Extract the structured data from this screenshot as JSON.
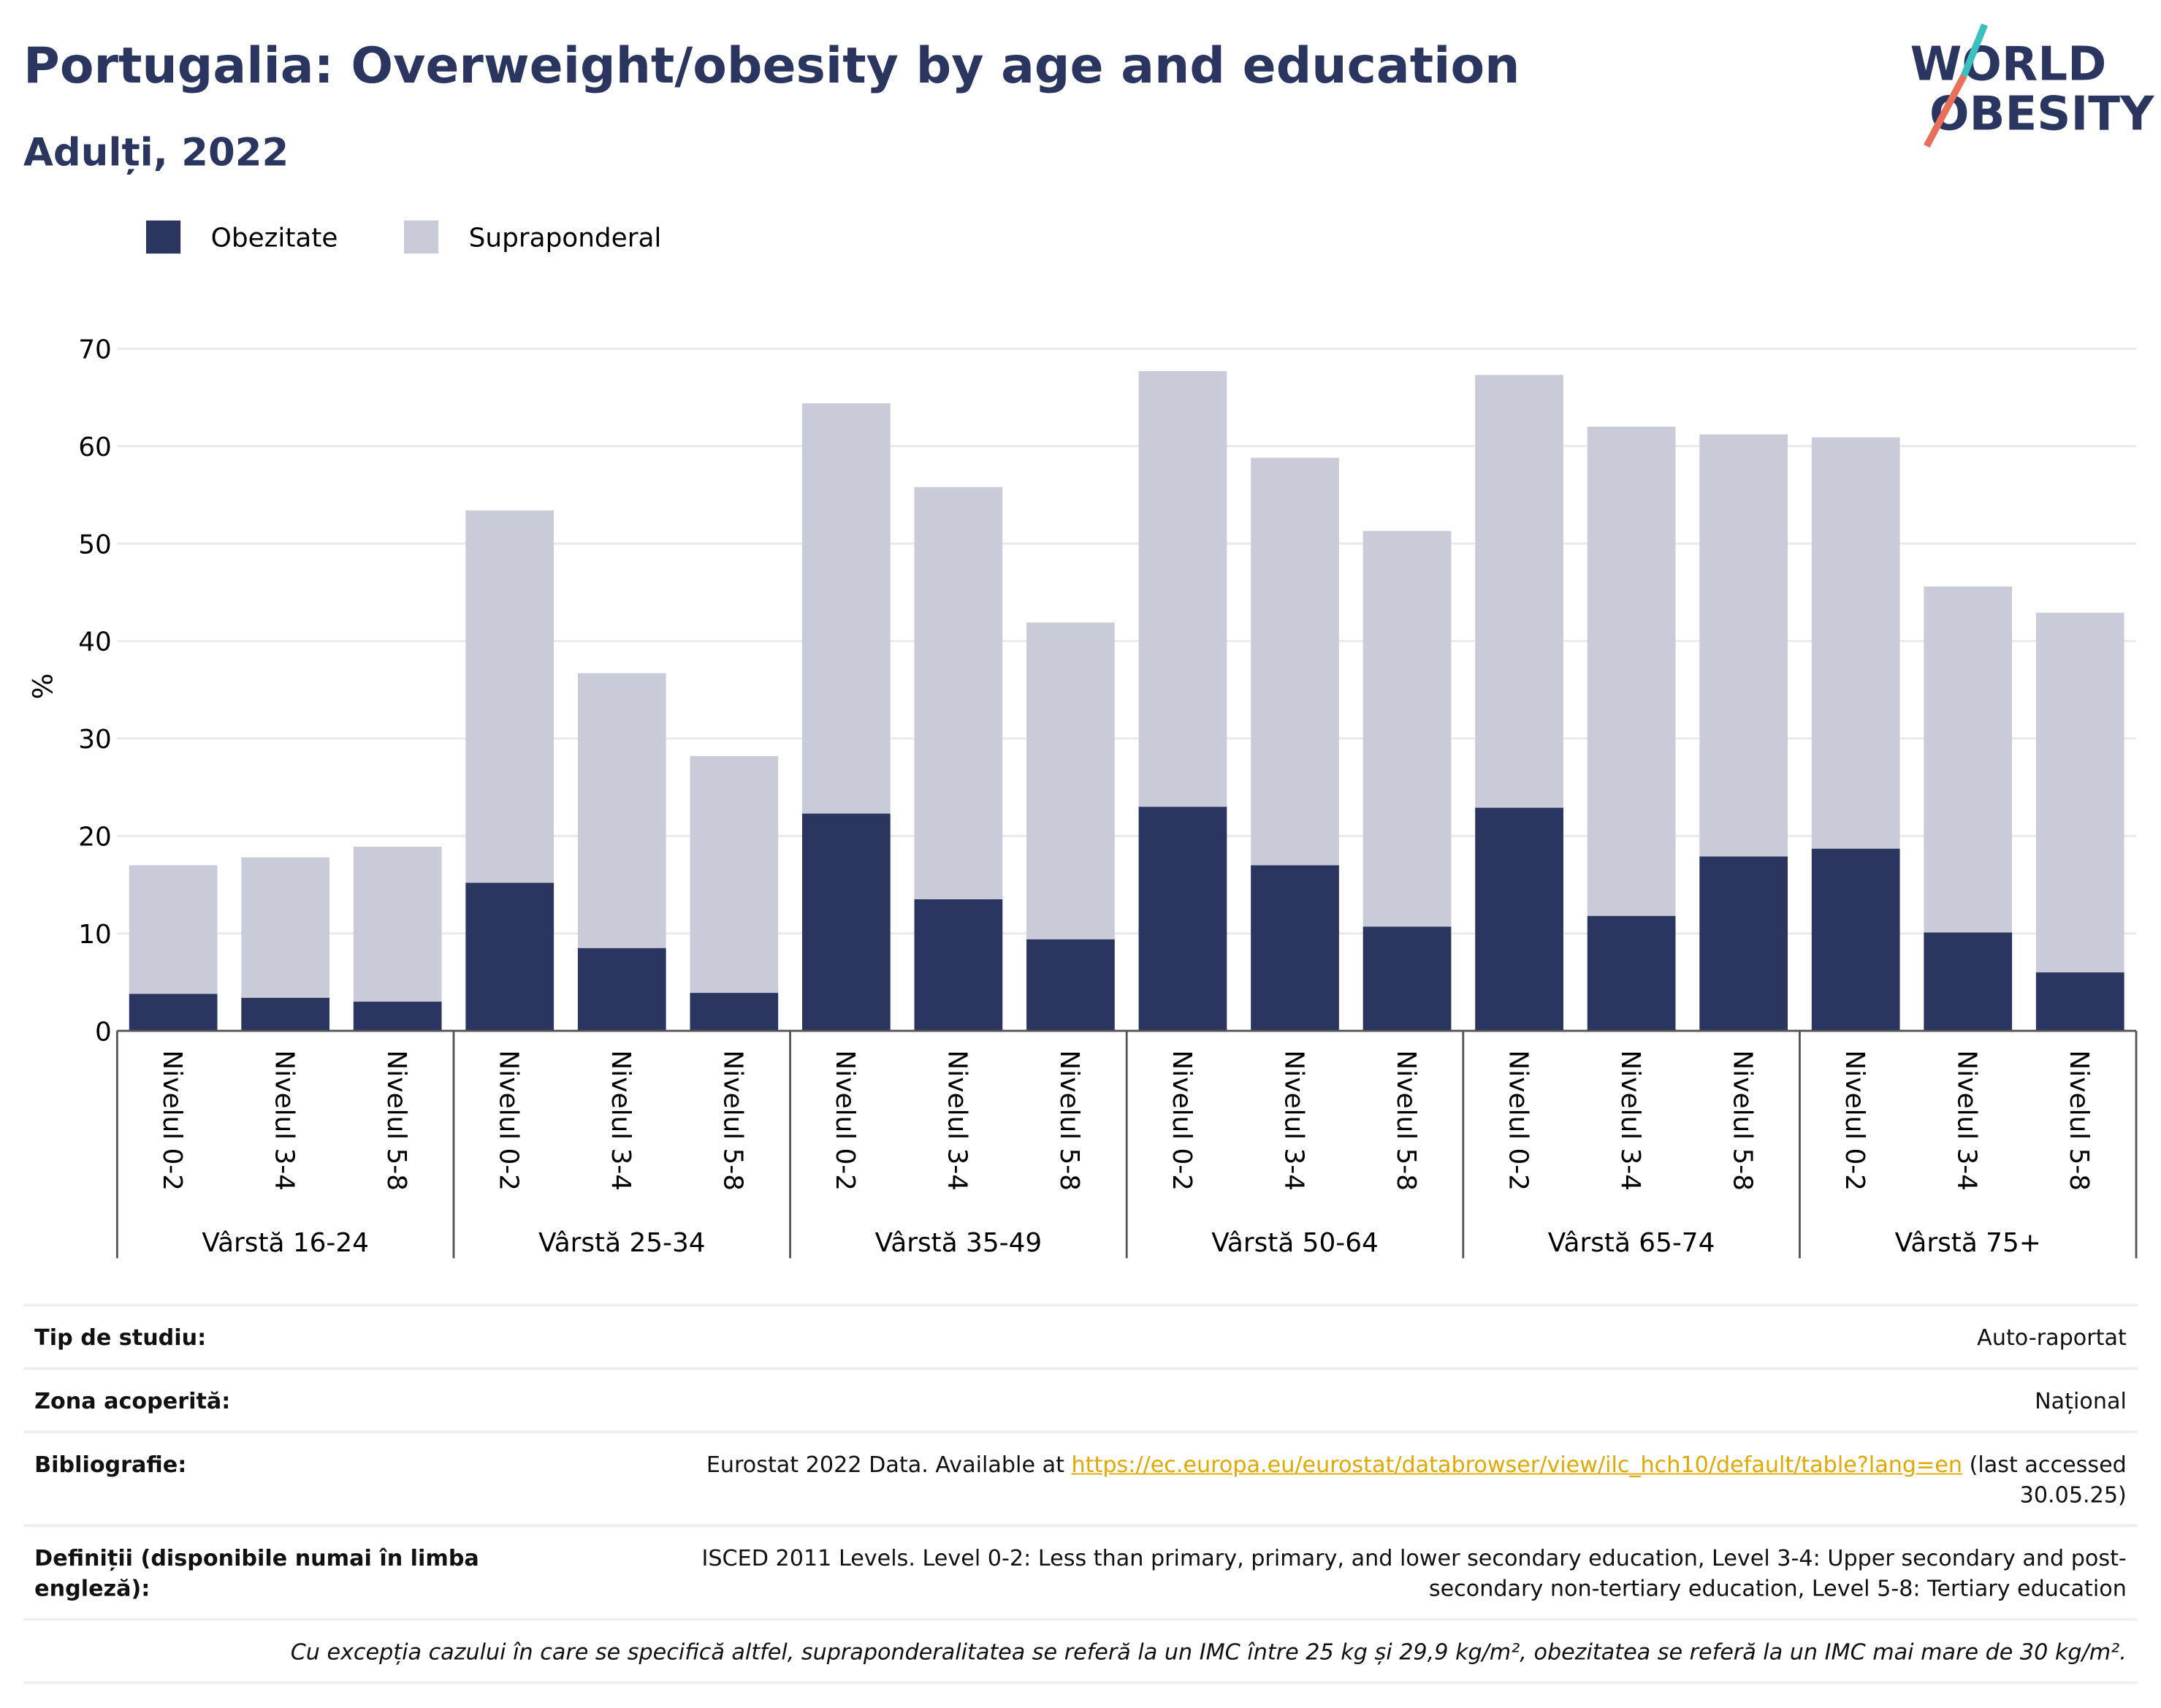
{
  "chart_data": {
    "type": "stacked-bar",
    "title": "Portugalia: Overweight/obesity by age and education",
    "subtitle": "Adulți, 2022",
    "logo": [
      "WORLD",
      "OBESITY"
    ],
    "y_label": "%",
    "categories": [
      "Nivelul 0-2",
      "Nivelul 3-4",
      "Nivelul 5-8",
      "Nivelul 0-2",
      "Nivelul 3-4",
      "Nivelul 5-8",
      "Nivelul 0-2",
      "Nivelul 3-4",
      "Nivelul 5-8",
      "Nivelul 0-2",
      "Nivelul 3-4",
      "Nivelul 5-8",
      "Nivelul 0-2",
      "Nivelul 3-4",
      "Nivelul 5-8",
      "Nivelul 0-2",
      "Nivelul 3-4",
      "Nivelul 5-8"
    ],
    "groups": [
      "Vârstă 16-24",
      "Vârstă 25-34",
      "Vârstă 35-49",
      "Vârstă 50-64",
      "Vârstă 65-74",
      "Vârstă 75+"
    ],
    "series": [
      {
        "name": "Obezitate",
        "color": "#2a3560",
        "values": [
          3.8,
          3.4,
          3.0,
          15.2,
          8.5,
          3.9,
          22.3,
          13.5,
          9.4,
          23.0,
          17.0,
          10.7,
          22.9,
          11.8,
          17.9,
          18.7,
          10.1,
          6.0
        ]
      },
      {
        "name": "Supraponderal",
        "color": "#cacbd8",
        "values": [
          13.2,
          14.4,
          15.9,
          38.2,
          28.2,
          24.3,
          42.1,
          42.3,
          32.5,
          44.7,
          41.8,
          40.6,
          44.4,
          50.2,
          43.3,
          42.2,
          35.5,
          36.9
        ]
      }
    ],
    "ylim": [
      0,
      70
    ],
    "yticks": [
      0,
      10,
      20,
      30,
      40,
      50,
      60,
      70
    ],
    "grid": true
  },
  "footer": {
    "rows": [
      {
        "label": "Tip de studiu:",
        "value": "Auto-raportat"
      },
      {
        "label": "Zona acoperită:",
        "value": "Național"
      },
      {
        "label": "Bibliografie:",
        "value": "Eurostat 2022 Data. Available at ",
        "link": "https://ec.europa.eu/eurostat/databrowser/view/ilc_hch10/default/table?lang=en",
        "after": " (last accessed 30.05.25)"
      },
      {
        "label": "Definiții (disponibile numai în limba engleză):",
        "value": "ISCED 2011 Levels. Level 0-2: Less than primary, primary, and lower secondary education, Level 3-4: Upper secondary and post-secondary non-tertiary education, Level 5-8: Tertiary education"
      }
    ],
    "note": "Cu excepția cazului în care se specifică altfel, supraponderalitatea se referă la un IMC între 25 kg și 29,9 kg/m², obezitatea se referă la un IMC mai mare de 30 kg/m²."
  }
}
